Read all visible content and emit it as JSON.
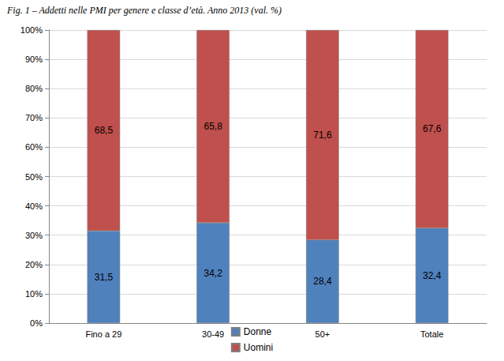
{
  "chart_data": {
    "type": "bar",
    "title": "Fig. 1 – Addetti nelle PMI per genere e classe d’età. Anno 2013 (val. %)",
    "categories": [
      "Fino a 29",
      "30-49",
      "50+",
      "Totale"
    ],
    "stacked": true,
    "data_labels": true,
    "grid": true,
    "legend": "bottom",
    "series": [
      {
        "name": "Donne",
        "color": "#4f81bd",
        "values": [
          31.5,
          34.2,
          28.4,
          32.4
        ],
        "value_labels": [
          "31,5",
          "34,2",
          "28,4",
          "32,4"
        ]
      },
      {
        "name": "Uomini",
        "color": "#c0504d",
        "values": [
          68.5,
          65.8,
          71.6,
          67.6
        ],
        "value_labels": [
          "68,5",
          "65,8",
          "71,6",
          "67,6"
        ]
      }
    ],
    "ylim": [
      0,
      100
    ],
    "yticks": [
      {
        "value": 0,
        "label": "0%"
      },
      {
        "value": 10,
        "label": "10%"
      },
      {
        "value": 20,
        "label": "20%"
      },
      {
        "value": 30,
        "label": "30%"
      },
      {
        "value": 40,
        "label": "40%"
      },
      {
        "value": 50,
        "label": "50%"
      },
      {
        "value": 60,
        "label": "60%"
      },
      {
        "value": 70,
        "label": "70%"
      },
      {
        "value": 80,
        "label": "80%"
      },
      {
        "value": 90,
        "label": "90%"
      },
      {
        "value": 100,
        "label": "100%"
      }
    ]
  }
}
